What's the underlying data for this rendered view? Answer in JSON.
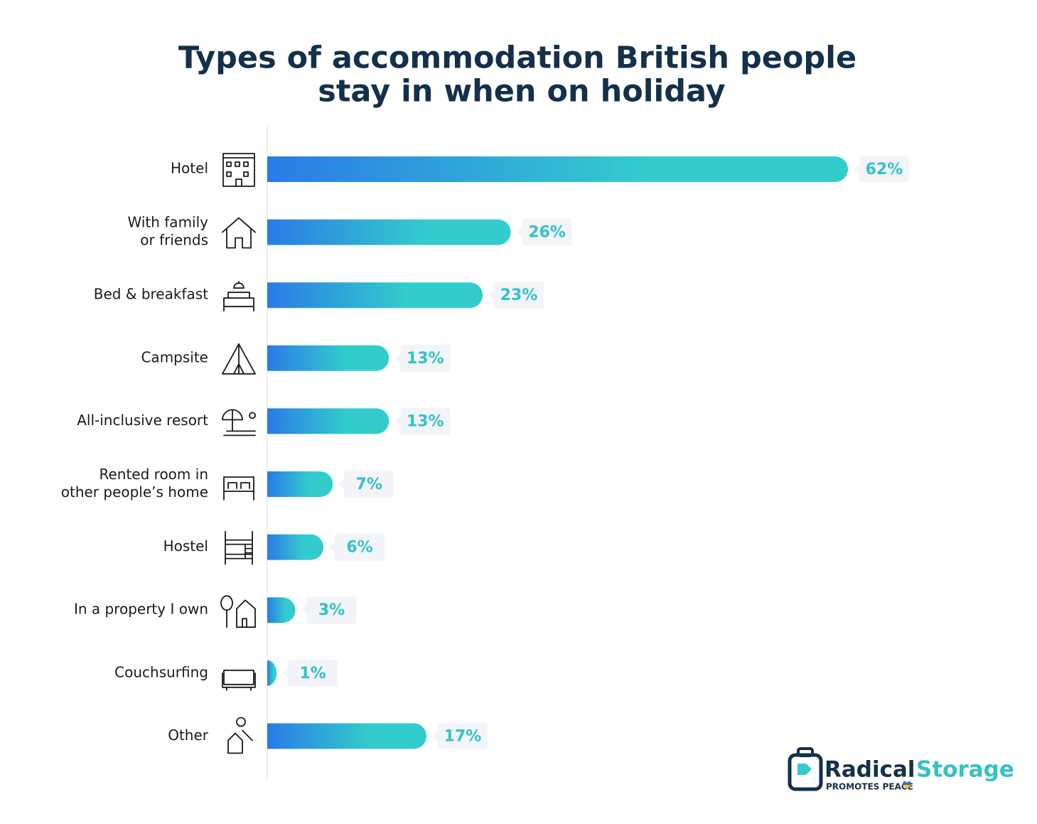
{
  "chart_data": {
    "type": "bar",
    "orientation": "horizontal",
    "title": [
      "Types of accommodation British people",
      "stay in when on holiday"
    ],
    "categories": [
      [
        "Hotel"
      ],
      [
        "With family",
        "or friends"
      ],
      [
        "Bed & breakfast"
      ],
      [
        "Campsite"
      ],
      [
        "All-inclusive resort"
      ],
      [
        "Rented room in",
        "other people’s home"
      ],
      [
        "Hostel"
      ],
      [
        "In a property I own"
      ],
      [
        "Couchsurfing"
      ],
      [
        "Other"
      ]
    ],
    "values": [
      62,
      26,
      23,
      13,
      13,
      7,
      6,
      3,
      1,
      17
    ],
    "value_labels": [
      "62%",
      "26%",
      "23%",
      "13%",
      "13%",
      "7%",
      "6%",
      "3%",
      "1%",
      "17%"
    ],
    "color": [
      "#2a7be6",
      "#33cccc"
    ]
  },
  "logo": {
    "name": "Radical",
    "name2": "Storage",
    "tagline": "PROMOTES PEACE"
  }
}
